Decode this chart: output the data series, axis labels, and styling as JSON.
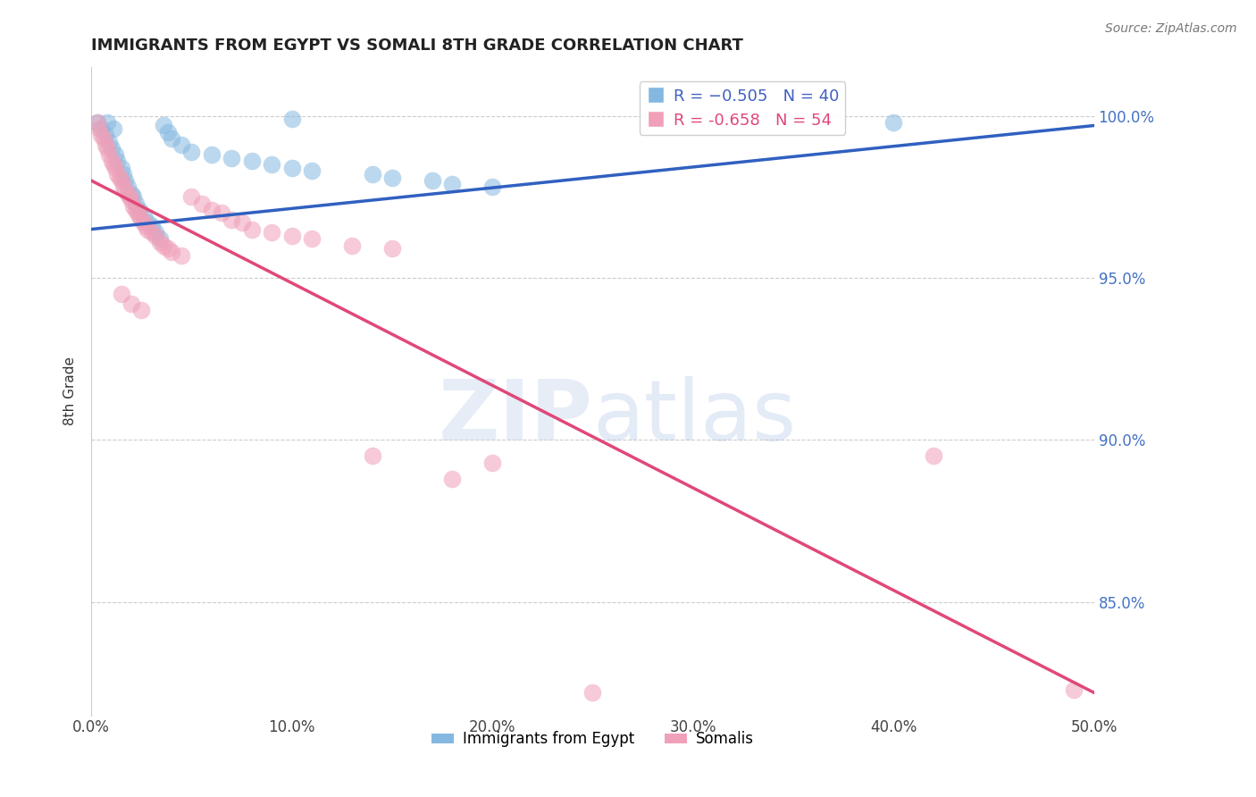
{
  "title": "IMMIGRANTS FROM EGYPT VS SOMALI 8TH GRADE CORRELATION CHART",
  "source_text": "Source: ZipAtlas.com",
  "ylabel": "8th Grade",
  "xlim": [
    0.0,
    0.5
  ],
  "ylim": [
    0.815,
    1.015
  ],
  "xticks": [
    0.0,
    0.1,
    0.2,
    0.3,
    0.4,
    0.5
  ],
  "xtick_labels": [
    "0.0%",
    "10.0%",
    "20.0%",
    "30.0%",
    "40.0%",
    "50.0%"
  ],
  "yticks": [
    0.85,
    0.9,
    0.95,
    1.0
  ],
  "ytick_labels": [
    "85.0%",
    "90.0%",
    "95.0%",
    "100.0%"
  ],
  "grid_color": "#cccccc",
  "bg_color": "#ffffff",
  "egypt_R": 0.505,
  "egypt_N": 40,
  "somalia_R": -0.658,
  "somalia_N": 54,
  "egypt_color": "#85b8e0",
  "somalia_color": "#f0a0b8",
  "egypt_line_color": "#3060c0",
  "somalia_line_color": "#e04878",
  "egypt_line_x": [
    0.0,
    0.5
  ],
  "egypt_line_y": [
    0.965,
    0.997
  ],
  "somalia_line_x": [
    0.0,
    0.5
  ],
  "somalia_line_y": [
    0.98,
    0.822
  ],
  "egypt_scatter": [
    [
      0.003,
      0.998
    ],
    [
      0.005,
      0.996
    ],
    [
      0.007,
      0.994
    ],
    [
      0.008,
      0.998
    ],
    [
      0.009,
      0.992
    ],
    [
      0.01,
      0.99
    ],
    [
      0.011,
      0.996
    ],
    [
      0.012,
      0.988
    ],
    [
      0.013,
      0.986
    ],
    [
      0.015,
      0.984
    ],
    [
      0.016,
      0.982
    ],
    [
      0.017,
      0.98
    ],
    [
      0.018,
      0.978
    ],
    [
      0.02,
      0.976
    ],
    [
      0.021,
      0.975
    ],
    [
      0.022,
      0.973
    ],
    [
      0.024,
      0.971
    ],
    [
      0.026,
      0.969
    ],
    [
      0.028,
      0.967
    ],
    [
      0.03,
      0.966
    ],
    [
      0.032,
      0.964
    ],
    [
      0.034,
      0.962
    ],
    [
      0.036,
      0.997
    ],
    [
      0.038,
      0.995
    ],
    [
      0.04,
      0.993
    ],
    [
      0.045,
      0.991
    ],
    [
      0.05,
      0.989
    ],
    [
      0.06,
      0.988
    ],
    [
      0.07,
      0.987
    ],
    [
      0.08,
      0.986
    ],
    [
      0.09,
      0.985
    ],
    [
      0.1,
      0.984
    ],
    [
      0.11,
      0.983
    ],
    [
      0.14,
      0.982
    ],
    [
      0.15,
      0.981
    ],
    [
      0.17,
      0.98
    ],
    [
      0.18,
      0.979
    ],
    [
      0.2,
      0.978
    ],
    [
      0.4,
      0.998
    ],
    [
      0.1,
      0.999
    ]
  ],
  "somalia_scatter": [
    [
      0.003,
      0.998
    ],
    [
      0.004,
      0.996
    ],
    [
      0.005,
      0.994
    ],
    [
      0.006,
      0.993
    ],
    [
      0.007,
      0.991
    ],
    [
      0.008,
      0.99
    ],
    [
      0.009,
      0.988
    ],
    [
      0.01,
      0.986
    ],
    [
      0.011,
      0.985
    ],
    [
      0.012,
      0.984
    ],
    [
      0.013,
      0.982
    ],
    [
      0.014,
      0.981
    ],
    [
      0.015,
      0.98
    ],
    [
      0.016,
      0.978
    ],
    [
      0.017,
      0.977
    ],
    [
      0.018,
      0.976
    ],
    [
      0.019,
      0.975
    ],
    [
      0.02,
      0.974
    ],
    [
      0.021,
      0.972
    ],
    [
      0.022,
      0.971
    ],
    [
      0.023,
      0.97
    ],
    [
      0.024,
      0.969
    ],
    [
      0.025,
      0.968
    ],
    [
      0.026,
      0.967
    ],
    [
      0.027,
      0.966
    ],
    [
      0.028,
      0.965
    ],
    [
      0.03,
      0.964
    ],
    [
      0.032,
      0.963
    ],
    [
      0.034,
      0.961
    ],
    [
      0.036,
      0.96
    ],
    [
      0.038,
      0.959
    ],
    [
      0.04,
      0.958
    ],
    [
      0.045,
      0.957
    ],
    [
      0.05,
      0.975
    ],
    [
      0.055,
      0.973
    ],
    [
      0.06,
      0.971
    ],
    [
      0.065,
      0.97
    ],
    [
      0.07,
      0.968
    ],
    [
      0.075,
      0.967
    ],
    [
      0.08,
      0.965
    ],
    [
      0.09,
      0.964
    ],
    [
      0.1,
      0.963
    ],
    [
      0.11,
      0.962
    ],
    [
      0.13,
      0.96
    ],
    [
      0.15,
      0.959
    ],
    [
      0.015,
      0.945
    ],
    [
      0.02,
      0.942
    ],
    [
      0.025,
      0.94
    ],
    [
      0.14,
      0.895
    ],
    [
      0.2,
      0.893
    ],
    [
      0.18,
      0.888
    ],
    [
      0.42,
      0.895
    ],
    [
      0.25,
      0.822
    ],
    [
      0.49,
      0.823
    ]
  ]
}
